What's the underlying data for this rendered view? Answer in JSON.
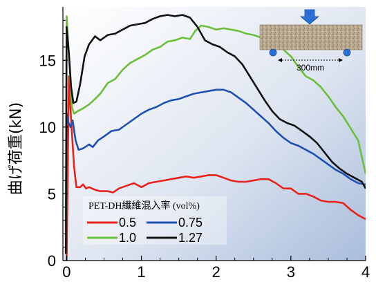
{
  "chart_data": {
    "type": "line",
    "xlabel": "",
    "ylabel": "曲げ荷重(kN)",
    "xlim": [
      -0.05,
      4.0
    ],
    "ylim": [
      0,
      19.0
    ],
    "x_ticks": [
      0,
      1,
      2,
      3,
      4
    ],
    "y_ticks": [
      0,
      5,
      10,
      15
    ],
    "legend": {
      "title": "PET-DH繊維混入率 (vol%)",
      "placement": "bottom-left"
    },
    "inset": {
      "span_label": "300mm"
    },
    "series": [
      {
        "name": "0.5",
        "color": "#e8221b",
        "points": [
          [
            0,
            0
          ],
          [
            0.03,
            13.8
          ],
          [
            0.06,
            10.5
          ],
          [
            0.1,
            7.0
          ],
          [
            0.13,
            5.5
          ],
          [
            0.18,
            5.5
          ],
          [
            0.22,
            5.7
          ],
          [
            0.26,
            5.4
          ],
          [
            0.3,
            5.5
          ],
          [
            0.38,
            5.3
          ],
          [
            0.45,
            5.2
          ],
          [
            0.55,
            5.2
          ],
          [
            0.62,
            5.1
          ],
          [
            0.7,
            5.4
          ],
          [
            0.8,
            5.6
          ],
          [
            0.9,
            5.8
          ],
          [
            1.0,
            5.5
          ],
          [
            1.1,
            5.8
          ],
          [
            1.2,
            5.9
          ],
          [
            1.3,
            6.0
          ],
          [
            1.4,
            6.1
          ],
          [
            1.5,
            6.2
          ],
          [
            1.6,
            6.3
          ],
          [
            1.7,
            6.2
          ],
          [
            1.8,
            6.3
          ],
          [
            1.9,
            6.4
          ],
          [
            2.0,
            6.4
          ],
          [
            2.1,
            6.2
          ],
          [
            2.2,
            6.0
          ],
          [
            2.3,
            5.9
          ],
          [
            2.4,
            5.9
          ],
          [
            2.5,
            6.0
          ],
          [
            2.6,
            6.1
          ],
          [
            2.7,
            6.1
          ],
          [
            2.8,
            5.8
          ],
          [
            2.9,
            5.4
          ],
          [
            3.0,
            5.4
          ],
          [
            3.1,
            5.0
          ],
          [
            3.2,
            5.0
          ],
          [
            3.3,
            4.8
          ],
          [
            3.4,
            4.5
          ],
          [
            3.5,
            4.4
          ],
          [
            3.6,
            4.4
          ],
          [
            3.7,
            4.3
          ],
          [
            3.8,
            3.8
          ],
          [
            3.9,
            3.4
          ],
          [
            4.0,
            3.1
          ]
        ]
      },
      {
        "name": "0.75",
        "color": "#1f4fb0",
        "points": [
          [
            -0.01,
            3.0
          ],
          [
            0.0,
            11.0
          ],
          [
            0.02,
            10.4
          ],
          [
            0.05,
            10.0
          ],
          [
            0.08,
            10.5
          ],
          [
            0.12,
            9.0
          ],
          [
            0.16,
            8.3
          ],
          [
            0.22,
            8.4
          ],
          [
            0.3,
            8.7
          ],
          [
            0.35,
            8.5
          ],
          [
            0.42,
            9.0
          ],
          [
            0.5,
            9.3
          ],
          [
            0.6,
            9.7
          ],
          [
            0.7,
            9.8
          ],
          [
            0.8,
            10.2
          ],
          [
            0.9,
            10.6
          ],
          [
            1.0,
            11.0
          ],
          [
            1.1,
            11.3
          ],
          [
            1.2,
            11.5
          ],
          [
            1.3,
            11.8
          ],
          [
            1.4,
            12.0
          ],
          [
            1.5,
            12.1
          ],
          [
            1.6,
            12.3
          ],
          [
            1.7,
            12.5
          ],
          [
            1.8,
            12.6
          ],
          [
            1.9,
            12.7
          ],
          [
            2.0,
            12.8
          ],
          [
            2.1,
            12.8
          ],
          [
            2.2,
            12.6
          ],
          [
            2.3,
            12.2
          ],
          [
            2.4,
            11.8
          ],
          [
            2.5,
            11.3
          ],
          [
            2.6,
            10.8
          ],
          [
            2.7,
            10.3
          ],
          [
            2.8,
            9.7
          ],
          [
            2.9,
            9.2
          ],
          [
            3.0,
            8.8
          ],
          [
            3.1,
            8.6
          ],
          [
            3.2,
            8.3
          ],
          [
            3.3,
            8.0
          ],
          [
            3.4,
            7.6
          ],
          [
            3.5,
            7.2
          ],
          [
            3.6,
            6.8
          ],
          [
            3.7,
            6.5
          ],
          [
            3.8,
            6.1
          ],
          [
            3.9,
            5.8
          ],
          [
            4.0,
            5.7
          ]
        ]
      },
      {
        "name": "1.0",
        "color": "#6cbf3a",
        "points": [
          [
            -0.01,
            2.5
          ],
          [
            0.0,
            18.3
          ],
          [
            0.03,
            15.5
          ],
          [
            0.07,
            11.5
          ],
          [
            0.1,
            11.0
          ],
          [
            0.15,
            11.2
          ],
          [
            0.22,
            11.4
          ],
          [
            0.3,
            11.7
          ],
          [
            0.38,
            12.1
          ],
          [
            0.45,
            12.5
          ],
          [
            0.55,
            13.3
          ],
          [
            0.65,
            13.6
          ],
          [
            0.75,
            14.3
          ],
          [
            0.85,
            14.8
          ],
          [
            0.95,
            15.1
          ],
          [
            1.05,
            15.4
          ],
          [
            1.15,
            15.8
          ],
          [
            1.25,
            16.0
          ],
          [
            1.35,
            16.4
          ],
          [
            1.45,
            16.5
          ],
          [
            1.55,
            16.7
          ],
          [
            1.65,
            16.6
          ],
          [
            1.72,
            17.2
          ],
          [
            1.8,
            17.6
          ],
          [
            1.9,
            17.5
          ],
          [
            2.0,
            17.3
          ],
          [
            2.1,
            17.4
          ],
          [
            2.2,
            17.3
          ],
          [
            2.3,
            17.2
          ],
          [
            2.4,
            17.0
          ],
          [
            2.5,
            16.9
          ],
          [
            2.6,
            16.7
          ],
          [
            2.7,
            16.6
          ],
          [
            2.8,
            16.2
          ],
          [
            2.9,
            15.8
          ],
          [
            3.0,
            15.3
          ],
          [
            3.1,
            14.5
          ],
          [
            3.2,
            13.8
          ],
          [
            3.3,
            13.5
          ],
          [
            3.4,
            13.0
          ],
          [
            3.5,
            12.3
          ],
          [
            3.6,
            11.5
          ],
          [
            3.7,
            10.8
          ],
          [
            3.8,
            9.9
          ],
          [
            3.9,
            9.0
          ],
          [
            4.0,
            6.5
          ]
        ]
      },
      {
        "name": "1.27",
        "color": "#111111",
        "points": [
          [
            -0.01,
            0.5
          ],
          [
            0.0,
            17.5
          ],
          [
            0.03,
            15.5
          ],
          [
            0.06,
            13.0
          ],
          [
            0.09,
            11.8
          ],
          [
            0.13,
            11.9
          ],
          [
            0.18,
            13.2
          ],
          [
            0.24,
            15.3
          ],
          [
            0.3,
            16.2
          ],
          [
            0.38,
            16.8
          ],
          [
            0.45,
            16.5
          ],
          [
            0.55,
            16.9
          ],
          [
            0.65,
            17.0
          ],
          [
            0.75,
            17.3
          ],
          [
            0.85,
            17.6
          ],
          [
            0.95,
            17.7
          ],
          [
            1.05,
            17.8
          ],
          [
            1.15,
            18.1
          ],
          [
            1.25,
            18.3
          ],
          [
            1.35,
            18.4
          ],
          [
            1.45,
            18.3
          ],
          [
            1.55,
            18.4
          ],
          [
            1.65,
            18.2
          ],
          [
            1.75,
            17.5
          ],
          [
            1.85,
            16.5
          ],
          [
            1.95,
            16.2
          ],
          [
            2.05,
            16.0
          ],
          [
            2.15,
            15.6
          ],
          [
            2.25,
            15.3
          ],
          [
            2.35,
            14.7
          ],
          [
            2.45,
            13.8
          ],
          [
            2.55,
            12.9
          ],
          [
            2.65,
            12.0
          ],
          [
            2.75,
            11.2
          ],
          [
            2.85,
            10.6
          ],
          [
            2.95,
            10.3
          ],
          [
            3.05,
            10.1
          ],
          [
            3.15,
            9.7
          ],
          [
            3.25,
            9.3
          ],
          [
            3.35,
            8.8
          ],
          [
            3.45,
            8.1
          ],
          [
            3.55,
            7.4
          ],
          [
            3.65,
            6.9
          ],
          [
            3.75,
            6.5
          ],
          [
            3.85,
            6.2
          ],
          [
            3.95,
            5.9
          ],
          [
            4.0,
            5.4
          ]
        ]
      }
    ]
  }
}
